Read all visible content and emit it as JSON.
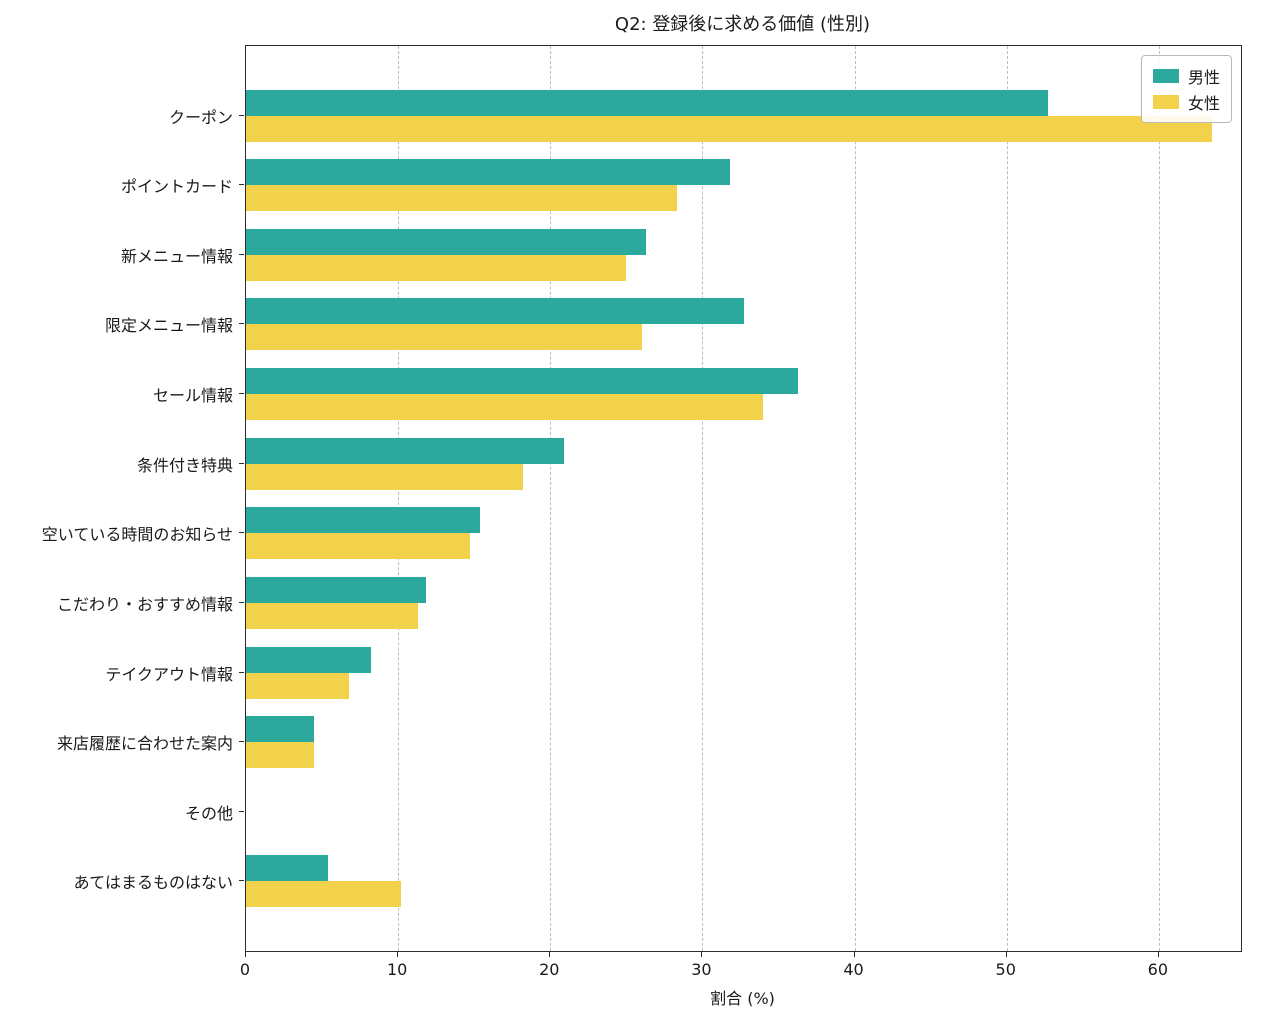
{
  "chart_data": {
    "type": "bar",
    "orientation": "horizontal",
    "title": "Q2: 登録後に求める価値 (性別)",
    "xlabel": "割合 (%)",
    "categories": [
      "クーポン",
      "ポイントカード",
      "新メニュー情報",
      "限定メニュー情報",
      "セール情報",
      "条件付き特典",
      "空いている時間のお知らせ",
      "こだわり・おすすめ情報",
      "テイクアウト情報",
      "来店履歴に合わせた案内",
      "その他",
      "あてはまるものはない"
    ],
    "series": [
      {
        "name": "男性",
        "color": "#2BA99C",
        "values": [
          52.7,
          31.8,
          26.3,
          32.7,
          36.3,
          20.9,
          15.4,
          11.8,
          8.2,
          4.5,
          0,
          5.4
        ]
      },
      {
        "name": "女性",
        "color": "#F2D24B",
        "values": [
          63.5,
          28.3,
          25.0,
          26.0,
          34.0,
          18.2,
          14.7,
          11.3,
          6.8,
          4.5,
          0,
          10.2
        ]
      }
    ],
    "xlim": [
      0,
      65.4
    ],
    "xticks": [
      0,
      10,
      20,
      30,
      40,
      50,
      60
    ],
    "grid": "vertical-dashed",
    "legend_position": "top-right"
  }
}
